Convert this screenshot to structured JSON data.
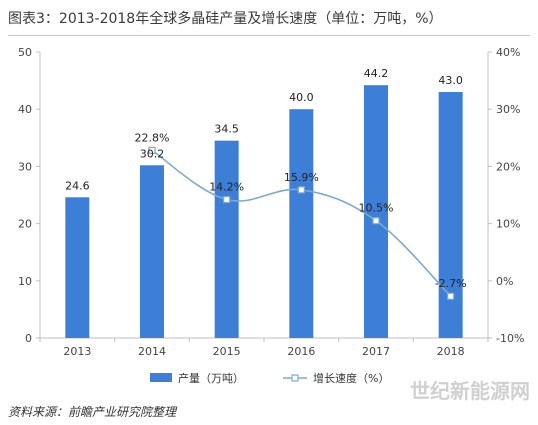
{
  "header": {
    "title": "图表3：2013-2018年全球多晶硅产量及增长速度（单位：万吨，%）"
  },
  "footer": {
    "source": "资料来源：前瞻产业研究院整理",
    "watermark": "世纪新能源网"
  },
  "colors": {
    "bar": "#3d7fd6",
    "line": "#7fa8cf",
    "marker_fill": "#ffffff",
    "grid": "#e0e0e0"
  },
  "chart_data": {
    "type": "bar",
    "categories": [
      "2013",
      "2014",
      "2015",
      "2016",
      "2017",
      "2018"
    ],
    "series": [
      {
        "name": "产量（万吨）",
        "type": "bar",
        "axis": "left",
        "values": [
          24.6,
          30.2,
          34.5,
          40.0,
          44.2,
          43.0
        ],
        "labels": [
          "24.6",
          "30.2",
          "34.5",
          "40.0",
          "44.2",
          "43.0"
        ]
      },
      {
        "name": "增长速度（%）",
        "type": "line",
        "axis": "right",
        "values": [
          null,
          22.8,
          14.2,
          15.9,
          10.5,
          -2.7
        ],
        "labels": [
          "",
          "22.8%",
          "14.2%",
          "15.9%",
          "10.5%",
          "-2.7%"
        ]
      }
    ],
    "y_left": {
      "min": 0,
      "max": 50,
      "ticks": [
        "0",
        "10",
        "20",
        "30",
        "40",
        "50"
      ]
    },
    "y_right": {
      "min": -10,
      "max": 40,
      "ticks": [
        "-10%",
        "0%",
        "10%",
        "20%",
        "30%",
        "40%"
      ]
    },
    "legend_position": "bottom-center",
    "grid": false
  }
}
